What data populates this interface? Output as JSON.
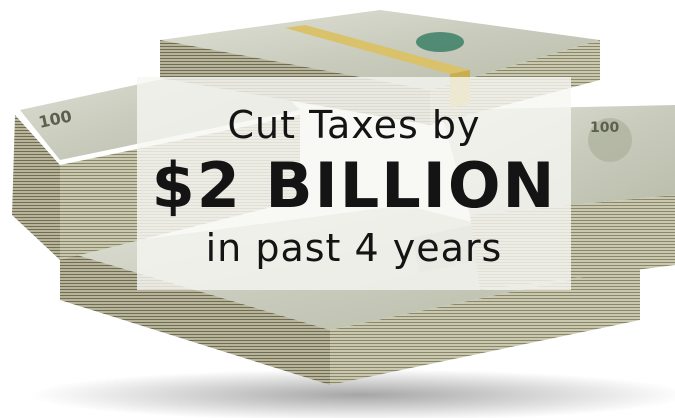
{
  "image": {
    "subject": "stacks of banded US hundred-dollar bills"
  },
  "caption": {
    "line1": "Cut Taxes by",
    "line2": "$2 BILLION",
    "line3": "in past 4 years"
  },
  "colors": {
    "caption_text": "#141414",
    "caption_box": "#f6f6f2",
    "bill_edge": "#8c8a68",
    "band": "#d9c26a"
  }
}
